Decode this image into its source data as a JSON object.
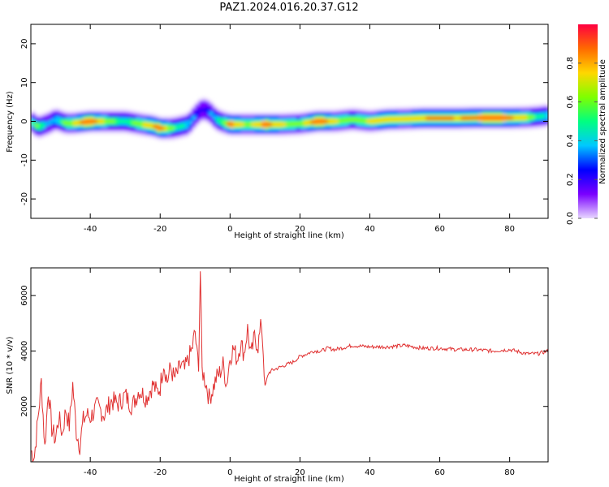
{
  "title": "PAZ1.2024.016.20.37.G12",
  "chart_data": [
    {
      "type": "heatmap",
      "xlabel": "Height of straight line (km)",
      "ylabel": "Frequency (Hz)",
      "xlim": [
        -57,
        91
      ],
      "ylim": [
        -25,
        25
      ],
      "xticks": [
        -40,
        -20,
        0,
        20,
        40,
        60,
        80
      ],
      "yticks": [
        -20,
        -10,
        0,
        10,
        20
      ],
      "colorbar": {
        "label": "Normalized spectral amplitude",
        "range": [
          0,
          1
        ],
        "ticks": [
          0.0,
          0.2,
          0.4,
          0.6,
          0.8
        ],
        "colors": [
          "#e8d8ff",
          "#7a00ff",
          "#0000ff",
          "#00c8ff",
          "#00ff80",
          "#7fff00",
          "#ffd700",
          "#ff6a00",
          "#ff0040"
        ]
      },
      "ridge": {
        "x": [
          -57,
          -55,
          -52,
          -50,
          -47,
          -45,
          -40,
          -35,
          -30,
          -25,
          -22,
          -20,
          -17,
          -15,
          -12,
          -10,
          -8,
          -6,
          -4,
          -2,
          0,
          5,
          10,
          15,
          20,
          25,
          30,
          35,
          40,
          45,
          50,
          55,
          60,
          65,
          70,
          75,
          80,
          85,
          88,
          91
        ],
        "y": [
          0,
          -1.5,
          -0.5,
          0.5,
          -0.5,
          -0.5,
          0,
          0,
          0,
          -0.8,
          -1.2,
          -1.8,
          -1.8,
          -1.5,
          -0.8,
          1.5,
          3.2,
          2.5,
          0.5,
          -0.3,
          -0.8,
          -0.8,
          -0.8,
          -0.8,
          -0.6,
          0,
          0,
          0.5,
          0,
          0.5,
          0.6,
          0.8,
          0.8,
          0.8,
          0.9,
          0.9,
          0.9,
          1.0,
          1.2,
          1.5
        ],
        "amplitude": [
          0.5,
          0.6,
          0.3,
          0.4,
          0.6,
          0.7,
          0.95,
          0.6,
          0.5,
          0.7,
          0.8,
          0.9,
          0.6,
          0.5,
          0.4,
          0.3,
          0.2,
          0.3,
          0.4,
          0.6,
          0.9,
          0.6,
          0.9,
          0.7,
          0.6,
          0.95,
          0.7,
          0.6,
          0.7,
          0.8,
          0.7,
          0.8,
          0.85,
          0.8,
          0.85,
          0.9,
          0.85,
          0.7,
          0.5,
          0.4
        ]
      }
    },
    {
      "type": "line",
      "xlabel": "Height of straight line (km)",
      "ylabel": "SNR (10 * v/v)",
      "xlim": [
        -57,
        91
      ],
      "ylim": [
        0,
        7000
      ],
      "xticks": [
        -40,
        -20,
        0,
        20,
        40,
        60,
        80
      ],
      "yticks": [
        2000,
        4000,
        6000
      ],
      "color": "#e03030",
      "series": [
        {
          "x": [
            -57,
            -56,
            -55,
            -54,
            -53,
            -52,
            -51,
            -50,
            -49,
            -48,
            -47,
            -46,
            -45,
            -44,
            -43,
            -42,
            -41,
            -40,
            -38,
            -36,
            -34,
            -32,
            -30,
            -28,
            -26,
            -24,
            -22,
            -21,
            -20,
            -19,
            -18,
            -17,
            -16,
            -15,
            -14,
            -13,
            -12,
            -11,
            -10,
            -9.5,
            -9,
            -8.5,
            -8,
            -7,
            -6,
            -5,
            -4,
            -3,
            -2,
            -1,
            0,
            1,
            2,
            3,
            4,
            5,
            6,
            7,
            8,
            9,
            9.5,
            10,
            11,
            12,
            14,
            16,
            18,
            20,
            22,
            24,
            26,
            28,
            30,
            35,
            40,
            45,
            50,
            55,
            60,
            65,
            70,
            75,
            80,
            85,
            88,
            91
          ],
          "y": [
            400,
            200,
            1500,
            2900,
            500,
            2600,
            1200,
            800,
            1600,
            1000,
            1900,
            1300,
            2800,
            1100,
            600,
            1500,
            1700,
            1600,
            2000,
            1700,
            2200,
            2100,
            2400,
            2000,
            2600,
            2300,
            2800,
            2500,
            2700,
            3600,
            2900,
            3400,
            3000,
            3200,
            3500,
            3300,
            3700,
            4000,
            4700,
            3900,
            3600,
            6900,
            3300,
            2900,
            2300,
            2600,
            3000,
            3200,
            3500,
            2800,
            3800,
            4100,
            3700,
            4300,
            3900,
            4800,
            3800,
            4500,
            4200,
            5000,
            4000,
            2700,
            3200,
            3300,
            3400,
            3500,
            3600,
            3800,
            3900,
            4000,
            4000,
            4100,
            4050,
            4200,
            4150,
            4150,
            4200,
            4100,
            4100,
            4050,
            4050,
            4000,
            4050,
            3900,
            3900,
            4000
          ]
        }
      ]
    }
  ]
}
